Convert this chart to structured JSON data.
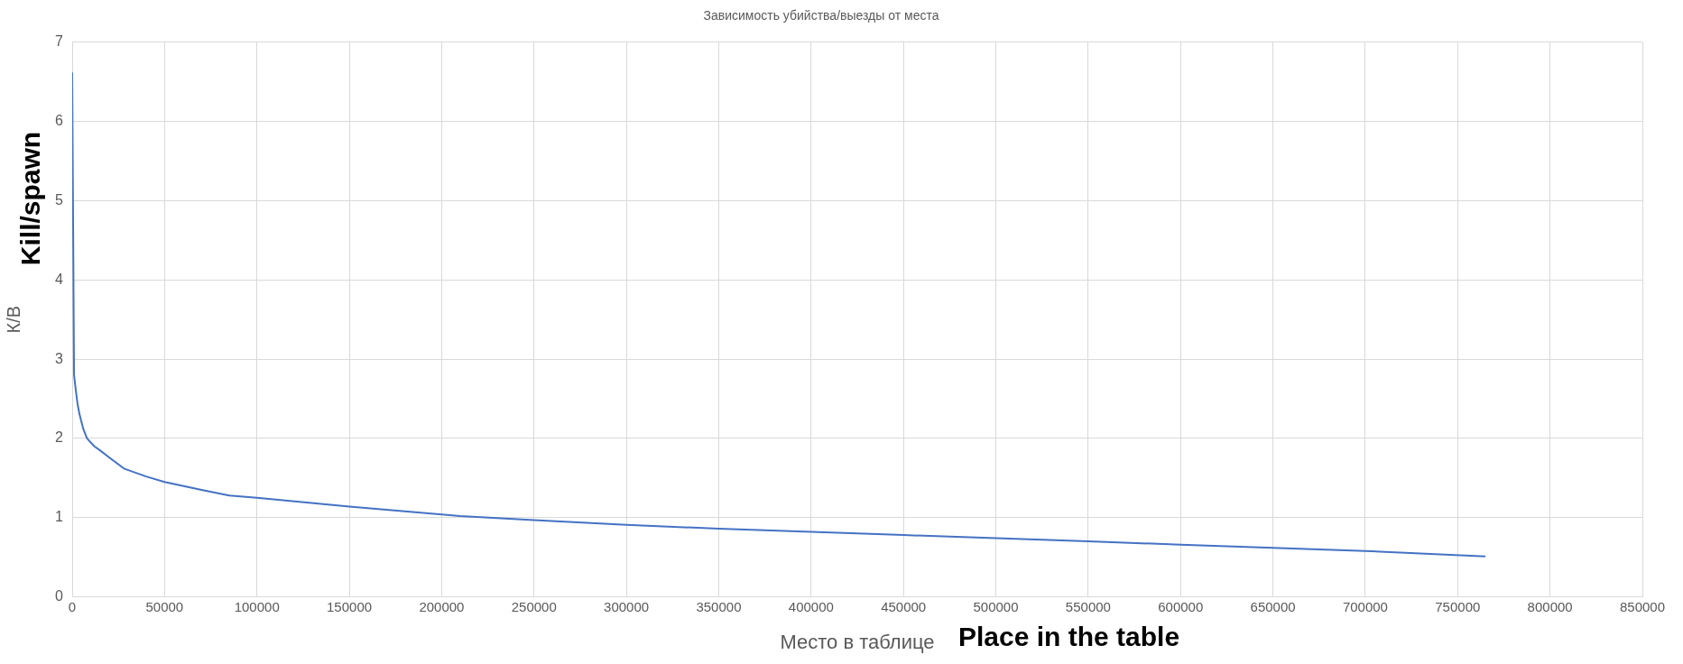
{
  "chart_data": {
    "type": "line",
    "title": "Зависимость убийства/выезды от места",
    "xlabel": "Место в таблице",
    "ylabel": "К/В",
    "annotations": [
      "Kill/spawn",
      "Place in the table"
    ],
    "series": [
      {
        "color": "#4472c4",
        "x": [
          0,
          1000,
          2000,
          3000,
          4000,
          6000,
          8000,
          12000,
          15000,
          20000,
          28000,
          40000,
          50000,
          70000,
          85000,
          100000,
          150000,
          210000,
          250000,
          300000,
          350000,
          400000,
          450000,
          500000,
          550000,
          600000,
          650000,
          700000,
          765000
        ],
        "values": [
          6.62,
          2.8,
          2.6,
          2.42,
          2.3,
          2.12,
          2.0,
          1.9,
          1.85,
          1.76,
          1.62,
          1.52,
          1.45,
          1.35,
          1.28,
          1.25,
          1.14,
          1.02,
          0.97,
          0.91,
          0.86,
          0.82,
          0.78,
          0.74,
          0.7,
          0.66,
          0.62,
          0.58,
          0.51
        ]
      }
    ],
    "xlim": [
      0,
      850000
    ],
    "xticks": [
      0,
      50000,
      100000,
      150000,
      200000,
      250000,
      300000,
      350000,
      400000,
      450000,
      500000,
      550000,
      600000,
      650000,
      700000,
      750000,
      800000,
      850000
    ],
    "ylim": [
      0,
      7
    ],
    "yticks": [
      0,
      1,
      2,
      3,
      4,
      5,
      6,
      7
    ],
    "grid": true,
    "legend": false,
    "marker": "none",
    "line_style": "solid"
  }
}
